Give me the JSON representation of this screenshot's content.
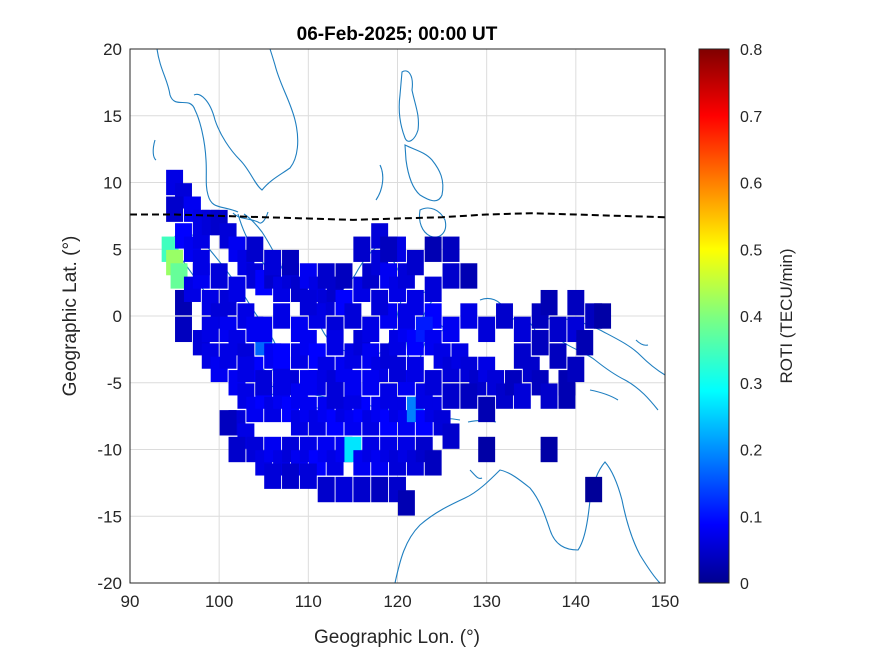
{
  "chart_data": {
    "type": "heatmap",
    "title": "06-Feb-2025; 00:00 UT",
    "xlabel": "Geographic Lon. (°)",
    "ylabel": "Geographic Lat. (°)",
    "xlim": [
      90,
      150
    ],
    "ylim": [
      -20,
      20
    ],
    "x_ticks": [
      "90",
      "100",
      "110",
      "120",
      "130",
      "140",
      "150"
    ],
    "y_ticks": [
      "20",
      "15",
      "10",
      "5",
      "0",
      "-5",
      "-10",
      "-15",
      "-20"
    ],
    "grid": true,
    "colorbar": {
      "label": "ROTI (TECU/min)",
      "range": [
        0,
        0.8
      ],
      "ticks": [
        "0.8",
        "0.7",
        "0.6",
        "0.5",
        "0.4",
        "0.3",
        "0.2",
        "0.1",
        "0"
      ],
      "colormap": "jet"
    },
    "magnetic_equator": [
      [
        90,
        7.6
      ],
      [
        95,
        7.6
      ],
      [
        100,
        7.5
      ],
      [
        105,
        7.4
      ],
      [
        110,
        7.3
      ],
      [
        115,
        7.2
      ],
      [
        120,
        7.3
      ],
      [
        125,
        7.4
      ],
      [
        130,
        7.6
      ],
      [
        135,
        7.7
      ],
      [
        140,
        7.6
      ],
      [
        145,
        7.5
      ],
      [
        150,
        7.4
      ]
    ],
    "cells": [
      [
        95,
        10,
        0.08
      ],
      [
        96,
        9,
        0.07
      ],
      [
        97,
        8,
        0.09
      ],
      [
        98,
        7,
        0.08
      ],
      [
        95,
        8,
        0.06
      ],
      [
        94.5,
        5,
        0.35
      ],
      [
        95,
        4,
        0.42
      ],
      [
        95.5,
        3,
        0.38
      ],
      [
        96,
        6,
        0.1
      ],
      [
        97,
        5,
        0.09
      ],
      [
        98,
        6,
        0.08
      ],
      [
        99,
        7,
        0.07
      ],
      [
        100,
        7,
        0.06
      ],
      [
        101,
        6,
        0.07
      ],
      [
        102,
        5,
        0.09
      ],
      [
        103,
        4,
        0.08
      ],
      [
        104,
        3,
        0.07
      ],
      [
        105,
        2.5,
        0.1
      ],
      [
        106,
        3,
        0.06
      ],
      [
        107,
        2,
        0.08
      ],
      [
        108,
        3,
        0.07
      ],
      [
        109,
        2,
        0.06
      ],
      [
        110,
        3,
        0.09
      ],
      [
        111,
        2,
        0.08
      ],
      [
        112,
        1,
        0.07
      ],
      [
        113,
        2,
        0.06
      ],
      [
        114,
        1,
        0.1
      ],
      [
        115,
        0,
        0.07
      ],
      [
        116,
        2,
        0.08
      ],
      [
        117,
        3,
        0.06
      ],
      [
        118,
        4,
        0.07
      ],
      [
        119,
        3,
        0.09
      ],
      [
        120,
        2,
        0.08
      ],
      [
        121,
        3,
        0.07
      ],
      [
        122,
        4,
        0.06
      ],
      [
        120,
        5,
        0.08
      ],
      [
        118,
        6,
        0.07
      ],
      [
        116,
        5,
        0.06
      ],
      [
        119,
        5,
        0.05
      ],
      [
        124,
        5,
        0.04
      ],
      [
        126,
        5,
        0.05
      ],
      [
        128,
        3,
        0.04
      ],
      [
        126,
        3,
        0.06
      ],
      [
        124,
        2,
        0.07
      ],
      [
        122,
        1,
        0.08
      ],
      [
        124,
        0,
        0.1
      ],
      [
        126,
        -1,
        0.09
      ],
      [
        128,
        0,
        0.08
      ],
      [
        130,
        -1,
        0.07
      ],
      [
        132,
        0,
        0.06
      ],
      [
        134,
        -1,
        0.07
      ],
      [
        136,
        0,
        0.05
      ],
      [
        138,
        -1,
        0.06
      ],
      [
        140,
        -1,
        0.07
      ],
      [
        142,
        0,
        0.05
      ],
      [
        137,
        1,
        0.04
      ],
      [
        140,
        1,
        0.05
      ],
      [
        143,
        0,
        0.03
      ],
      [
        141,
        -2,
        0.04
      ],
      [
        96,
        1,
        0.04
      ],
      [
        97,
        2,
        0.08
      ],
      [
        98,
        3,
        0.09
      ],
      [
        99,
        1,
        0.08
      ],
      [
        100,
        0,
        0.07
      ],
      [
        101,
        -1,
        0.09
      ],
      [
        102,
        -2,
        0.08
      ],
      [
        103,
        -3,
        0.07
      ],
      [
        104,
        -4,
        0.1
      ],
      [
        105,
        -2,
        0.18
      ],
      [
        106,
        -3,
        0.09
      ],
      [
        107,
        -4,
        0.08
      ],
      [
        108,
        -5,
        0.07
      ],
      [
        109,
        -3,
        0.08
      ],
      [
        110,
        -2,
        0.09
      ],
      [
        111,
        -3,
        0.1
      ],
      [
        112,
        -4,
        0.08
      ],
      [
        113,
        -5,
        0.07
      ],
      [
        114,
        -4,
        0.09
      ],
      [
        115,
        -3,
        0.08
      ],
      [
        116,
        -2,
        0.07
      ],
      [
        117,
        -3,
        0.09
      ],
      [
        118,
        -4,
        0.08
      ],
      [
        119,
        -3,
        0.07
      ],
      [
        120,
        -2,
        0.08
      ],
      [
        121,
        -1,
        0.09
      ],
      [
        122,
        -2,
        0.1
      ],
      [
        123,
        -1,
        0.12
      ],
      [
        124,
        -2,
        0.09
      ],
      [
        125,
        -3,
        0.08
      ],
      [
        126,
        -4,
        0.07
      ],
      [
        127,
        -3,
        0.08
      ],
      [
        128,
        -4,
        0.07
      ],
      [
        129,
        -5,
        0.06
      ],
      [
        130,
        -4,
        0.08
      ],
      [
        131,
        -5,
        0.07
      ],
      [
        132,
        -6,
        0.06
      ],
      [
        133,
        -5,
        0.05
      ],
      [
        134,
        -6,
        0.07
      ],
      [
        135,
        -4,
        0.06
      ],
      [
        136,
        -5,
        0.05
      ],
      [
        137,
        -6,
        0.06
      ],
      [
        139,
        -5,
        0.04
      ],
      [
        136,
        -2,
        0.05
      ],
      [
        134,
        -3,
        0.06
      ],
      [
        138,
        -3,
        0.05
      ],
      [
        140,
        -4,
        0.05
      ],
      [
        102,
        -5,
        0.09
      ],
      [
        103,
        -6,
        0.08
      ],
      [
        104,
        -7,
        0.09
      ],
      [
        105,
        -6,
        0.1
      ],
      [
        106,
        -7,
        0.08
      ],
      [
        107,
        -6,
        0.09
      ],
      [
        108,
        -7,
        0.1
      ],
      [
        109,
        -8,
        0.08
      ],
      [
        110,
        -7,
        0.09
      ],
      [
        111,
        -8,
        0.08
      ],
      [
        112,
        -7,
        0.09
      ],
      [
        113,
        -8,
        0.1
      ],
      [
        114,
        -7,
        0.08
      ],
      [
        115,
        -8,
        0.09
      ],
      [
        116,
        -7,
        0.1
      ],
      [
        117,
        -8,
        0.08
      ],
      [
        118,
        -7,
        0.09
      ],
      [
        119,
        -8,
        0.1
      ],
      [
        120,
        -7,
        0.08
      ],
      [
        121,
        -8,
        0.09
      ],
      [
        122,
        -7,
        0.2
      ],
      [
        123,
        -8,
        0.1
      ],
      [
        124,
        -7,
        0.08
      ],
      [
        125,
        -8,
        0.07
      ],
      [
        126,
        -9,
        0.06
      ],
      [
        123,
        -6,
        0.08
      ],
      [
        121,
        -5,
        0.09
      ],
      [
        119,
        -6,
        0.08
      ],
      [
        117,
        -5,
        0.09
      ],
      [
        115,
        -6,
        0.08
      ],
      [
        113,
        -6,
        0.07
      ],
      [
        111,
        -5,
        0.08
      ],
      [
        109,
        -6,
        0.09
      ],
      [
        107,
        -5,
        0.08
      ],
      [
        105,
        -5,
        0.07
      ],
      [
        103,
        -4,
        0.08
      ],
      [
        102,
        -8,
        0.07
      ],
      [
        103,
        -9,
        0.08
      ],
      [
        104,
        -10,
        0.07
      ],
      [
        105,
        -11,
        0.08
      ],
      [
        106,
        -10,
        0.09
      ],
      [
        107,
        -11,
        0.08
      ],
      [
        108,
        -10,
        0.07
      ],
      [
        109,
        -11,
        0.09
      ],
      [
        110,
        -10,
        0.08
      ],
      [
        111,
        -11,
        0.1
      ],
      [
        112,
        -10,
        0.09
      ],
      [
        113,
        -11,
        0.08
      ],
      [
        114,
        -10,
        0.09
      ],
      [
        115,
        -10,
        0.28
      ],
      [
        116,
        -11,
        0.09
      ],
      [
        117,
        -10,
        0.08
      ],
      [
        118,
        -11,
        0.09
      ],
      [
        119,
        -10,
        0.08
      ],
      [
        120,
        -11,
        0.07
      ],
      [
        121,
        -10,
        0.08
      ],
      [
        122,
        -11,
        0.07
      ],
      [
        123,
        -10,
        0.06
      ],
      [
        124,
        -11,
        0.05
      ],
      [
        106,
        -12,
        0.07
      ],
      [
        108,
        -12,
        0.06
      ],
      [
        110,
        -12,
        0.07
      ],
      [
        112,
        -13,
        0.06
      ],
      [
        114,
        -13,
        0.07
      ],
      [
        116,
        -13,
        0.06
      ],
      [
        118,
        -13,
        0.05
      ],
      [
        120,
        -13,
        0.06
      ],
      [
        121,
        -14,
        0.04
      ],
      [
        101,
        -8,
        0.05
      ],
      [
        102,
        -10,
        0.06
      ],
      [
        96,
        -1,
        0.05
      ],
      [
        98,
        -2,
        0.07
      ],
      [
        99,
        -3,
        0.08
      ],
      [
        100,
        -4,
        0.09
      ],
      [
        101,
        -3,
        0.08
      ],
      [
        130,
        -10,
        0.03
      ],
      [
        137,
        -10,
        0.03
      ],
      [
        142,
        -13,
        0.02
      ],
      [
        139,
        -6,
        0.04
      ],
      [
        113,
        -1,
        0.07
      ],
      [
        111,
        0,
        0.08
      ],
      [
        109,
        -1,
        0.09
      ],
      [
        107,
        0,
        0.08
      ],
      [
        105,
        -1,
        0.09
      ],
      [
        103,
        0,
        0.08
      ],
      [
        101,
        1,
        0.07
      ],
      [
        99,
        -1,
        0.08
      ],
      [
        117,
        -1,
        0.08
      ],
      [
        119,
        0,
        0.09
      ],
      [
        121,
        0,
        0.08
      ],
      [
        118,
        1,
        0.07
      ],
      [
        115,
        -5,
        0.09
      ],
      [
        113,
        -2,
        0.08
      ],
      [
        110,
        -5,
        0.09
      ],
      [
        107,
        -3,
        0.1
      ],
      [
        104,
        -1,
        0.09
      ],
      [
        102,
        2,
        0.08
      ],
      [
        100,
        3,
        0.07
      ],
      [
        98,
        4,
        0.08
      ],
      [
        104,
        5,
        0.06
      ],
      [
        106,
        4,
        0.07
      ],
      [
        108,
        4,
        0.05
      ],
      [
        110,
        1,
        0.07
      ],
      [
        112,
        3,
        0.06
      ],
      [
        114,
        3,
        0.05
      ],
      [
        120,
        -4,
        0.07
      ],
      [
        122,
        -4,
        0.08
      ],
      [
        124,
        -5,
        0.07
      ],
      [
        126,
        -6,
        0.06
      ],
      [
        128,
        -6,
        0.05
      ],
      [
        130,
        -7,
        0.04
      ]
    ]
  }
}
